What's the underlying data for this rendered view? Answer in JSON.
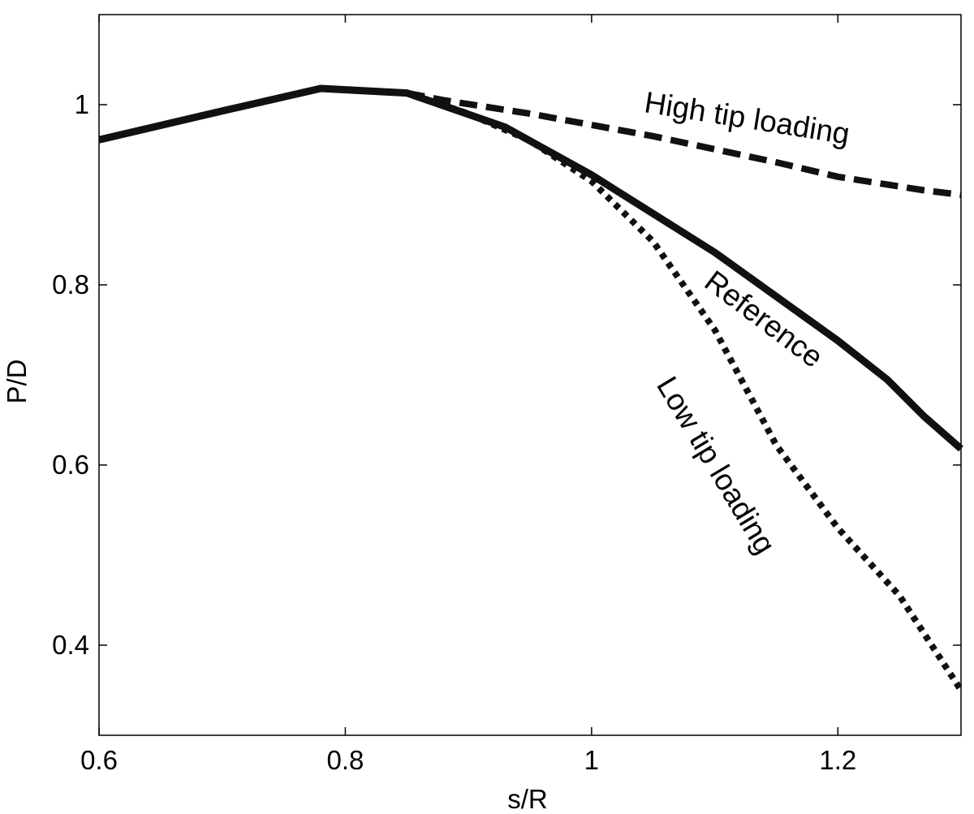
{
  "chart_data": {
    "type": "line",
    "title": "",
    "xlabel": "s/R",
    "ylabel": "P/D",
    "xlim": [
      0.6,
      1.3
    ],
    "ylim": [
      0.3,
      1.1
    ],
    "x_ticks": [
      0.6,
      0.8,
      1.0,
      1.2
    ],
    "x_tick_labels": [
      "0.6",
      "0.8",
      "1",
      "1.2"
    ],
    "y_ticks": [
      0.4,
      0.6,
      0.8,
      1.0
    ],
    "y_tick_labels": [
      "0.4",
      "0.6",
      "0.8",
      "1"
    ],
    "grid": false,
    "legend": "none",
    "series": [
      {
        "style": "solid",
        "points": [
          [
            0.6,
            0.961
          ],
          [
            0.7,
            0.993
          ],
          [
            0.78,
            1.018
          ],
          [
            0.85,
            1.013
          ],
          [
            0.93,
            0.975
          ],
          [
            1.0,
            0.922
          ],
          [
            1.1,
            0.836
          ],
          [
            1.2,
            0.738
          ],
          [
            1.24,
            0.695
          ],
          [
            1.27,
            0.654
          ],
          [
            1.3,
            0.618
          ]
        ]
      },
      {
        "style": "dashed",
        "points": [
          [
            0.85,
            1.013
          ],
          [
            0.88,
            1.005
          ],
          [
            0.95,
            0.99
          ],
          [
            1.05,
            0.965
          ],
          [
            1.15,
            0.936
          ],
          [
            1.2,
            0.92
          ],
          [
            1.27,
            0.905
          ],
          [
            1.3,
            0.9
          ]
        ]
      },
      {
        "style": "dotted",
        "points": [
          [
            0.85,
            1.013
          ],
          [
            0.9,
            0.99
          ],
          [
            0.95,
            0.96
          ],
          [
            1.0,
            0.915
          ],
          [
            1.05,
            0.848
          ],
          [
            1.1,
            0.75
          ],
          [
            1.15,
            0.622
          ],
          [
            1.2,
            0.53
          ],
          [
            1.25,
            0.455
          ],
          [
            1.3,
            0.35
          ]
        ]
      }
    ],
    "annotations": [
      {
        "text": "High tip loading",
        "x": 1.125,
        "y": 0.974,
        "rotate": 9
      },
      {
        "text": "Reference",
        "x": 1.135,
        "y": 0.753,
        "rotate": 37
      },
      {
        "text": "Low tip loading",
        "x": 1.094,
        "y": 0.594,
        "rotate": 59
      }
    ]
  }
}
